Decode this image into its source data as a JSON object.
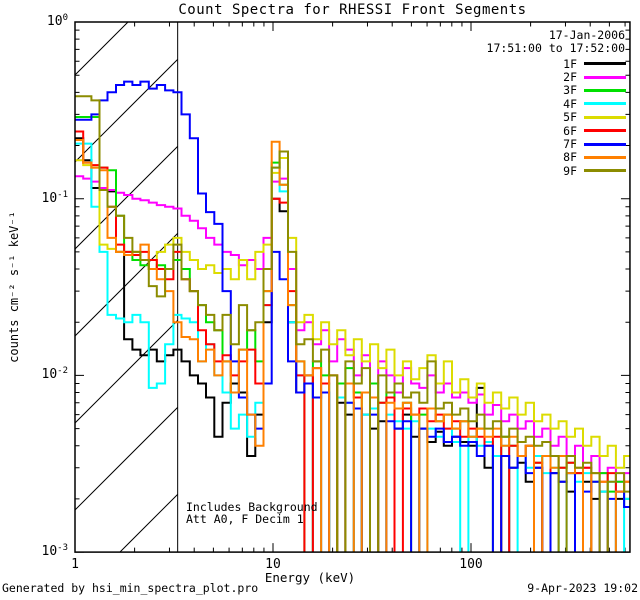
{
  "header": {
    "title": "Count Spectra for RHESSI Front Segments"
  },
  "annotations": {
    "date": "17-Jan-2006",
    "time_range": "17:51:00 to 17:52:00",
    "includes_background": "Includes Background",
    "attenuation": "Att A0, F Decim 1",
    "footer_left": "Generated by hsi_min_spectra_plot.pro",
    "footer_right": "9-Apr-2023 19:02"
  },
  "chart_data": {
    "type": "line",
    "subtype": "step-histogram-spectra",
    "scale": "log-log",
    "title": "Count Spectra for RHESSI Front Segments",
    "xlabel": "Energy (keV)",
    "ylabel": "counts cm⁻² s⁻¹ keV⁻¹",
    "xlim": [
      1,
      635
    ],
    "ylim": [
      0.001,
      1
    ],
    "x_major_ticks": [
      1,
      10,
      100
    ],
    "y_major_tick_exponents": [
      0,
      -1,
      -2,
      -3
    ],
    "grid": false,
    "legend_position": "top-right",
    "hatch_region": {
      "x_min": 1.0,
      "x_max": 3.3,
      "style": "diagonal-hatch",
      "note": "low-energy attenuated range"
    },
    "energies": [
      1.0,
      1.1,
      1.21,
      1.33,
      1.46,
      1.61,
      1.77,
      1.95,
      2.14,
      2.36,
      2.59,
      2.85,
      3.14,
      3.45,
      3.8,
      4.18,
      4.59,
      5.05,
      5.56,
      6.12,
      6.73,
      7.4,
      8.14,
      8.95,
      9.85,
      10.8,
      11.9,
      13.1,
      14.4,
      15.9,
      17.5,
      19.2,
      21.1,
      23.2,
      25.6,
      28.1,
      30.9,
      34.0,
      37.4,
      41.1,
      45.3,
      49.8,
      54.8,
      60.2,
      66.3,
      72.9,
      80.2,
      88.2,
      97.0,
      107,
      117,
      129,
      142,
      156,
      172,
      189,
      208,
      229,
      252,
      277,
      304,
      335,
      368,
      405,
      446,
      490,
      539,
      593
    ],
    "series": [
      {
        "name": "1F",
        "color": "#000000",
        "values": [
          0.22,
          0.165,
          0.115,
          0.112,
          0.11,
          0.05,
          0.016,
          0.014,
          0.013,
          0.014,
          0.012,
          0.013,
          0.014,
          0.012,
          0.01,
          0.009,
          0.0075,
          0.0045,
          0.007,
          0.009,
          0.008,
          0.0035,
          0.006,
          0.02,
          0.1,
          0.085,
          0.02,
          0.008,
          0.01,
          0.0008,
          0.009,
          0.0008,
          0.007,
          0.006,
          0.0008,
          0.006,
          0.005,
          0.0055,
          0.0008,
          0.005,
          0.006,
          0.0045,
          0.005,
          0.0042,
          0.0048,
          0.004,
          0.0045,
          0.0042,
          0.004,
          0.0085,
          0.003,
          0.0035,
          0.0008,
          0.003,
          0.0032,
          0.0025,
          0.003,
          0.0008,
          0.0028,
          0.0025,
          0.0022,
          0.0008,
          0.0025,
          0.002,
          0.0022,
          0.0008,
          0.002,
          0.0018
        ]
      },
      {
        "name": "2F",
        "color": "#ff00ff",
        "values": [
          0.134,
          0.13,
          0.125,
          0.115,
          0.112,
          0.108,
          0.105,
          0.1,
          0.098,
          0.095,
          0.092,
          0.09,
          0.088,
          0.08,
          0.075,
          0.068,
          0.06,
          0.055,
          0.05,
          0.048,
          0.042,
          0.045,
          0.04,
          0.06,
          0.125,
          0.13,
          0.04,
          0.018,
          0.02,
          0.015,
          0.018,
          0.012,
          0.016,
          0.014,
          0.01,
          0.013,
          0.009,
          0.012,
          0.01,
          0.008,
          0.011,
          0.009,
          0.0085,
          0.01,
          0.008,
          0.009,
          0.0075,
          0.008,
          0.007,
          0.0078,
          0.006,
          0.0068,
          0.0055,
          0.006,
          0.005,
          0.0055,
          0.0045,
          0.005,
          0.004,
          0.0045,
          0.0035,
          0.004,
          0.003,
          0.0035,
          0.0028,
          0.003,
          0.0025,
          0.0028
        ]
      },
      {
        "name": "3F",
        "color": "#00e000",
        "values": [
          0.29,
          0.29,
          0.29,
          0.15,
          0.145,
          0.08,
          0.05,
          0.045,
          0.042,
          0.04,
          0.042,
          0.04,
          0.045,
          0.04,
          0.03,
          0.025,
          0.02,
          0.018,
          0.012,
          0.008,
          0.014,
          0.018,
          0.012,
          0.03,
          0.16,
          0.12,
          0.025,
          0.012,
          0.0008,
          0.012,
          0.01,
          0.0008,
          0.009,
          0.011,
          0.008,
          0.0008,
          0.009,
          0.007,
          0.008,
          0.0065,
          0.007,
          0.0008,
          0.006,
          0.0065,
          0.0055,
          0.006,
          0.005,
          0.0055,
          0.0045,
          0.005,
          0.0042,
          0.0008,
          0.0045,
          0.004,
          0.0035,
          0.004,
          0.0032,
          0.0035,
          0.0008,
          0.003,
          0.0032,
          0.0028,
          0.0008,
          0.0025,
          0.0028,
          0.0022,
          0.0025,
          0.002
        ]
      },
      {
        "name": "4F",
        "color": "#00ffff",
        "values": [
          0.205,
          0.205,
          0.09,
          0.05,
          0.022,
          0.021,
          0.02,
          0.022,
          0.02,
          0.0085,
          0.009,
          0.015,
          0.022,
          0.021,
          0.02,
          0.012,
          0.015,
          0.01,
          0.008,
          0.005,
          0.006,
          0.0045,
          0.007,
          0.025,
          0.15,
          0.11,
          0.02,
          0.01,
          0.009,
          0.0005,
          0.008,
          0.0005,
          0.0075,
          0.007,
          0.0005,
          0.006,
          0.0065,
          0.0005,
          0.006,
          0.0055,
          0.005,
          0.0055,
          0.0005,
          0.005,
          0.0045,
          0.005,
          0.0042,
          0.0005,
          0.0045,
          0.004,
          0.0042,
          0.0035,
          0.004,
          0.0005,
          0.0035,
          0.003,
          0.0035,
          0.0028,
          0.003,
          0.0005,
          0.0028,
          0.0025,
          0.0028,
          0.0005,
          0.0022,
          0.0025,
          0.0005,
          0.002
        ]
      },
      {
        "name": "5F",
        "color": "#dcdc00",
        "values": [
          0.165,
          0.155,
          0.15,
          0.055,
          0.052,
          0.05,
          0.048,
          0.05,
          0.045,
          0.04,
          0.05,
          0.055,
          0.06,
          0.05,
          0.045,
          0.04,
          0.042,
          0.038,
          0.04,
          0.035,
          0.045,
          0.035,
          0.05,
          0.055,
          0.14,
          0.17,
          0.06,
          0.02,
          0.022,
          0.016,
          0.02,
          0.015,
          0.018,
          0.013,
          0.016,
          0.012,
          0.015,
          0.011,
          0.014,
          0.01,
          0.012,
          0.0095,
          0.011,
          0.013,
          0.009,
          0.012,
          0.008,
          0.0095,
          0.0075,
          0.009,
          0.007,
          0.008,
          0.0065,
          0.0075,
          0.006,
          0.007,
          0.0055,
          0.006,
          0.005,
          0.0055,
          0.0045,
          0.005,
          0.004,
          0.0045,
          0.0035,
          0.004,
          0.003,
          0.0035
        ]
      },
      {
        "name": "6F",
        "color": "#ff0000",
        "values": [
          0.24,
          0.16,
          0.155,
          0.15,
          0.09,
          0.055,
          0.05,
          0.048,
          0.05,
          0.045,
          0.04,
          0.035,
          0.05,
          0.035,
          0.03,
          0.018,
          0.015,
          0.012,
          0.013,
          0.01,
          0.012,
          0.014,
          0.009,
          0.025,
          0.1,
          0.095,
          0.03,
          0.01,
          0.0008,
          0.011,
          0.009,
          0.01,
          0.0008,
          0.009,
          0.0075,
          0.008,
          0.0008,
          0.007,
          0.0075,
          0.0008,
          0.0065,
          0.006,
          0.0065,
          0.0055,
          0.006,
          0.005,
          0.0055,
          0.0045,
          0.005,
          0.0045,
          0.004,
          0.0045,
          0.0008,
          0.004,
          0.0035,
          0.004,
          0.0032,
          0.0008,
          0.0035,
          0.003,
          0.0032,
          0.0028,
          0.003,
          0.0008,
          0.0025,
          0.0028,
          0.0022,
          0.0025
        ]
      },
      {
        "name": "7F",
        "color": "#0000ff",
        "values": [
          0.28,
          0.28,
          0.3,
          0.36,
          0.4,
          0.44,
          0.46,
          0.44,
          0.46,
          0.42,
          0.44,
          0.41,
          0.4,
          0.3,
          0.22,
          0.107,
          0.084,
          0.072,
          0.03,
          0.012,
          0.0075,
          0.006,
          0.005,
          0.009,
          0.05,
          0.035,
          0.012,
          0.008,
          0.009,
          0.0075,
          0.008,
          0.0005,
          0.0005,
          0.007,
          0.0065,
          0.0005,
          0.006,
          0.0005,
          0.0055,
          0.005,
          0.0055,
          0.0005,
          0.005,
          0.0045,
          0.005,
          0.0042,
          0.0045,
          0.004,
          0.0042,
          0.0035,
          0.004,
          0.0005,
          0.0035,
          0.003,
          0.0035,
          0.0028,
          0.003,
          0.0005,
          0.0028,
          0.0025,
          0.0028,
          0.0005,
          0.0022,
          0.0025,
          0.0005,
          0.002,
          0.0022,
          0.0018
        ]
      },
      {
        "name": "8F",
        "color": "#ff8000",
        "values": [
          0.215,
          0.16,
          0.15,
          0.145,
          0.06,
          0.05,
          0.048,
          0.05,
          0.055,
          0.04,
          0.035,
          0.03,
          0.02,
          0.0165,
          0.016,
          0.012,
          0.014,
          0.01,
          0.012,
          0.008,
          0.014,
          0.006,
          0.004,
          0.03,
          0.21,
          0.12,
          0.025,
          0.012,
          0.01,
          0.011,
          0.0005,
          0.01,
          0.0005,
          0.009,
          0.0005,
          0.008,
          0.0075,
          0.0005,
          0.007,
          0.0065,
          0.007,
          0.006,
          0.0005,
          0.0065,
          0.0055,
          0.006,
          0.005,
          0.0055,
          0.0045,
          0.005,
          0.0045,
          0.005,
          0.004,
          0.0045,
          0.0035,
          0.004,
          0.0005,
          0.0035,
          0.003,
          0.0035,
          0.0028,
          0.003,
          0.0005,
          0.0028,
          0.0025,
          0.0005,
          0.0022,
          0.0025
        ]
      },
      {
        "name": "9F",
        "color": "#8c8c00",
        "values": [
          0.38,
          0.38,
          0.36,
          0.112,
          0.09,
          0.08,
          0.06,
          0.05,
          0.045,
          0.032,
          0.028,
          0.04,
          0.055,
          0.035,
          0.03,
          0.025,
          0.022,
          0.018,
          0.022,
          0.015,
          0.025,
          0.018,
          0.02,
          0.04,
          0.15,
          0.185,
          0.05,
          0.015,
          0.016,
          0.012,
          0.014,
          0.01,
          0.0008,
          0.012,
          0.009,
          0.011,
          0.0008,
          0.01,
          0.008,
          0.009,
          0.0075,
          0.008,
          0.007,
          0.012,
          0.0065,
          0.007,
          0.006,
          0.0065,
          0.0055,
          0.006,
          0.005,
          0.0055,
          0.0045,
          0.005,
          0.0042,
          0.0045,
          0.004,
          0.0042,
          0.0035,
          0.0008,
          0.0035,
          0.003,
          0.0032,
          0.0028,
          0.0008,
          0.0025,
          0.0028,
          0.0022
        ]
      }
    ]
  }
}
